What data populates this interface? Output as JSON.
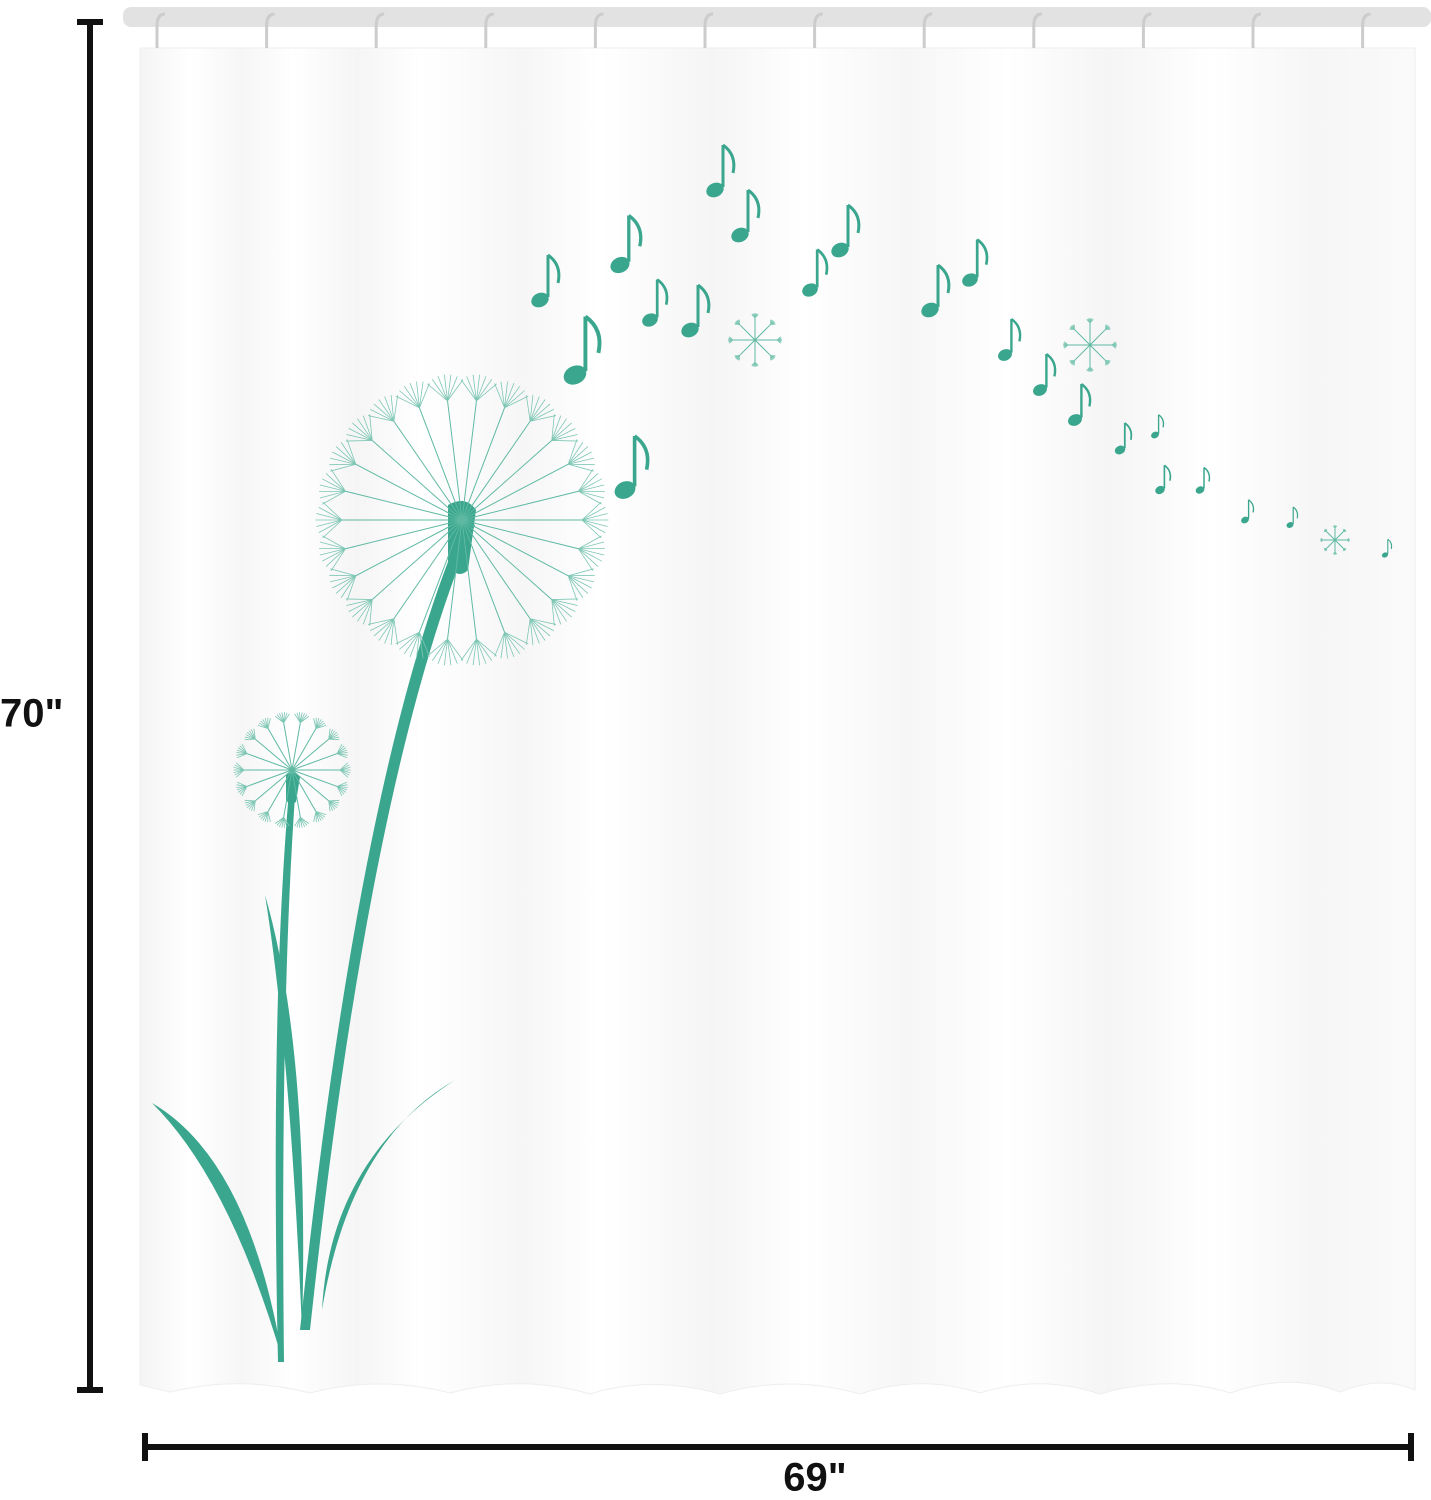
{
  "dimensions": {
    "height": "70\"",
    "width": "69\""
  }
}
